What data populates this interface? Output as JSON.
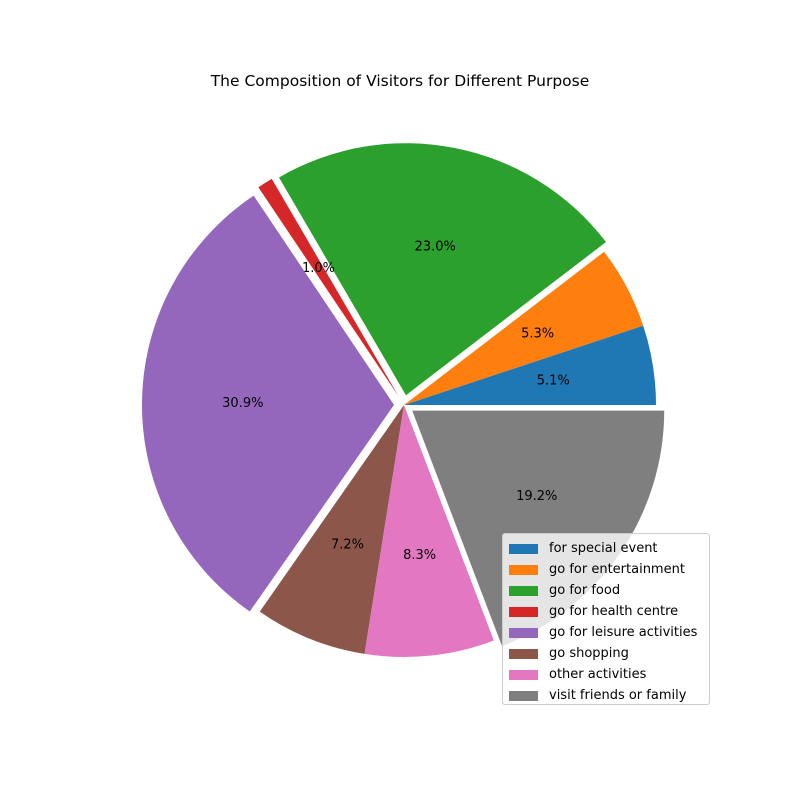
{
  "chart_data": {
    "type": "pie",
    "title": "The Composition of Visitors for Different Purpose",
    "categories": [
      "for special event",
      "go for entertainment",
      "go for food",
      "go for health centre",
      "go for leisure activities",
      "go shopping",
      "other activities",
      "visit friends or family"
    ],
    "values": [
      5.1,
      5.3,
      23.0,
      1.0,
      30.9,
      7.2,
      8.3,
      19.2
    ],
    "labels": [
      "5.1%",
      "5.3%",
      "23.0%",
      "1.0%",
      "30.9%",
      "7.2%",
      "8.3%",
      "19.2%"
    ],
    "exploded": [
      false,
      false,
      true,
      true,
      true,
      false,
      false,
      true
    ],
    "colors": [
      "#1f77b4",
      "#ff7f0e",
      "#2ca02c",
      "#d62728",
      "#9467bd",
      "#8c564b",
      "#e377c2",
      "#7f7f7f"
    ],
    "start_angle": 0,
    "direction": "counterclockwise",
    "legend_position": "lower-right"
  }
}
